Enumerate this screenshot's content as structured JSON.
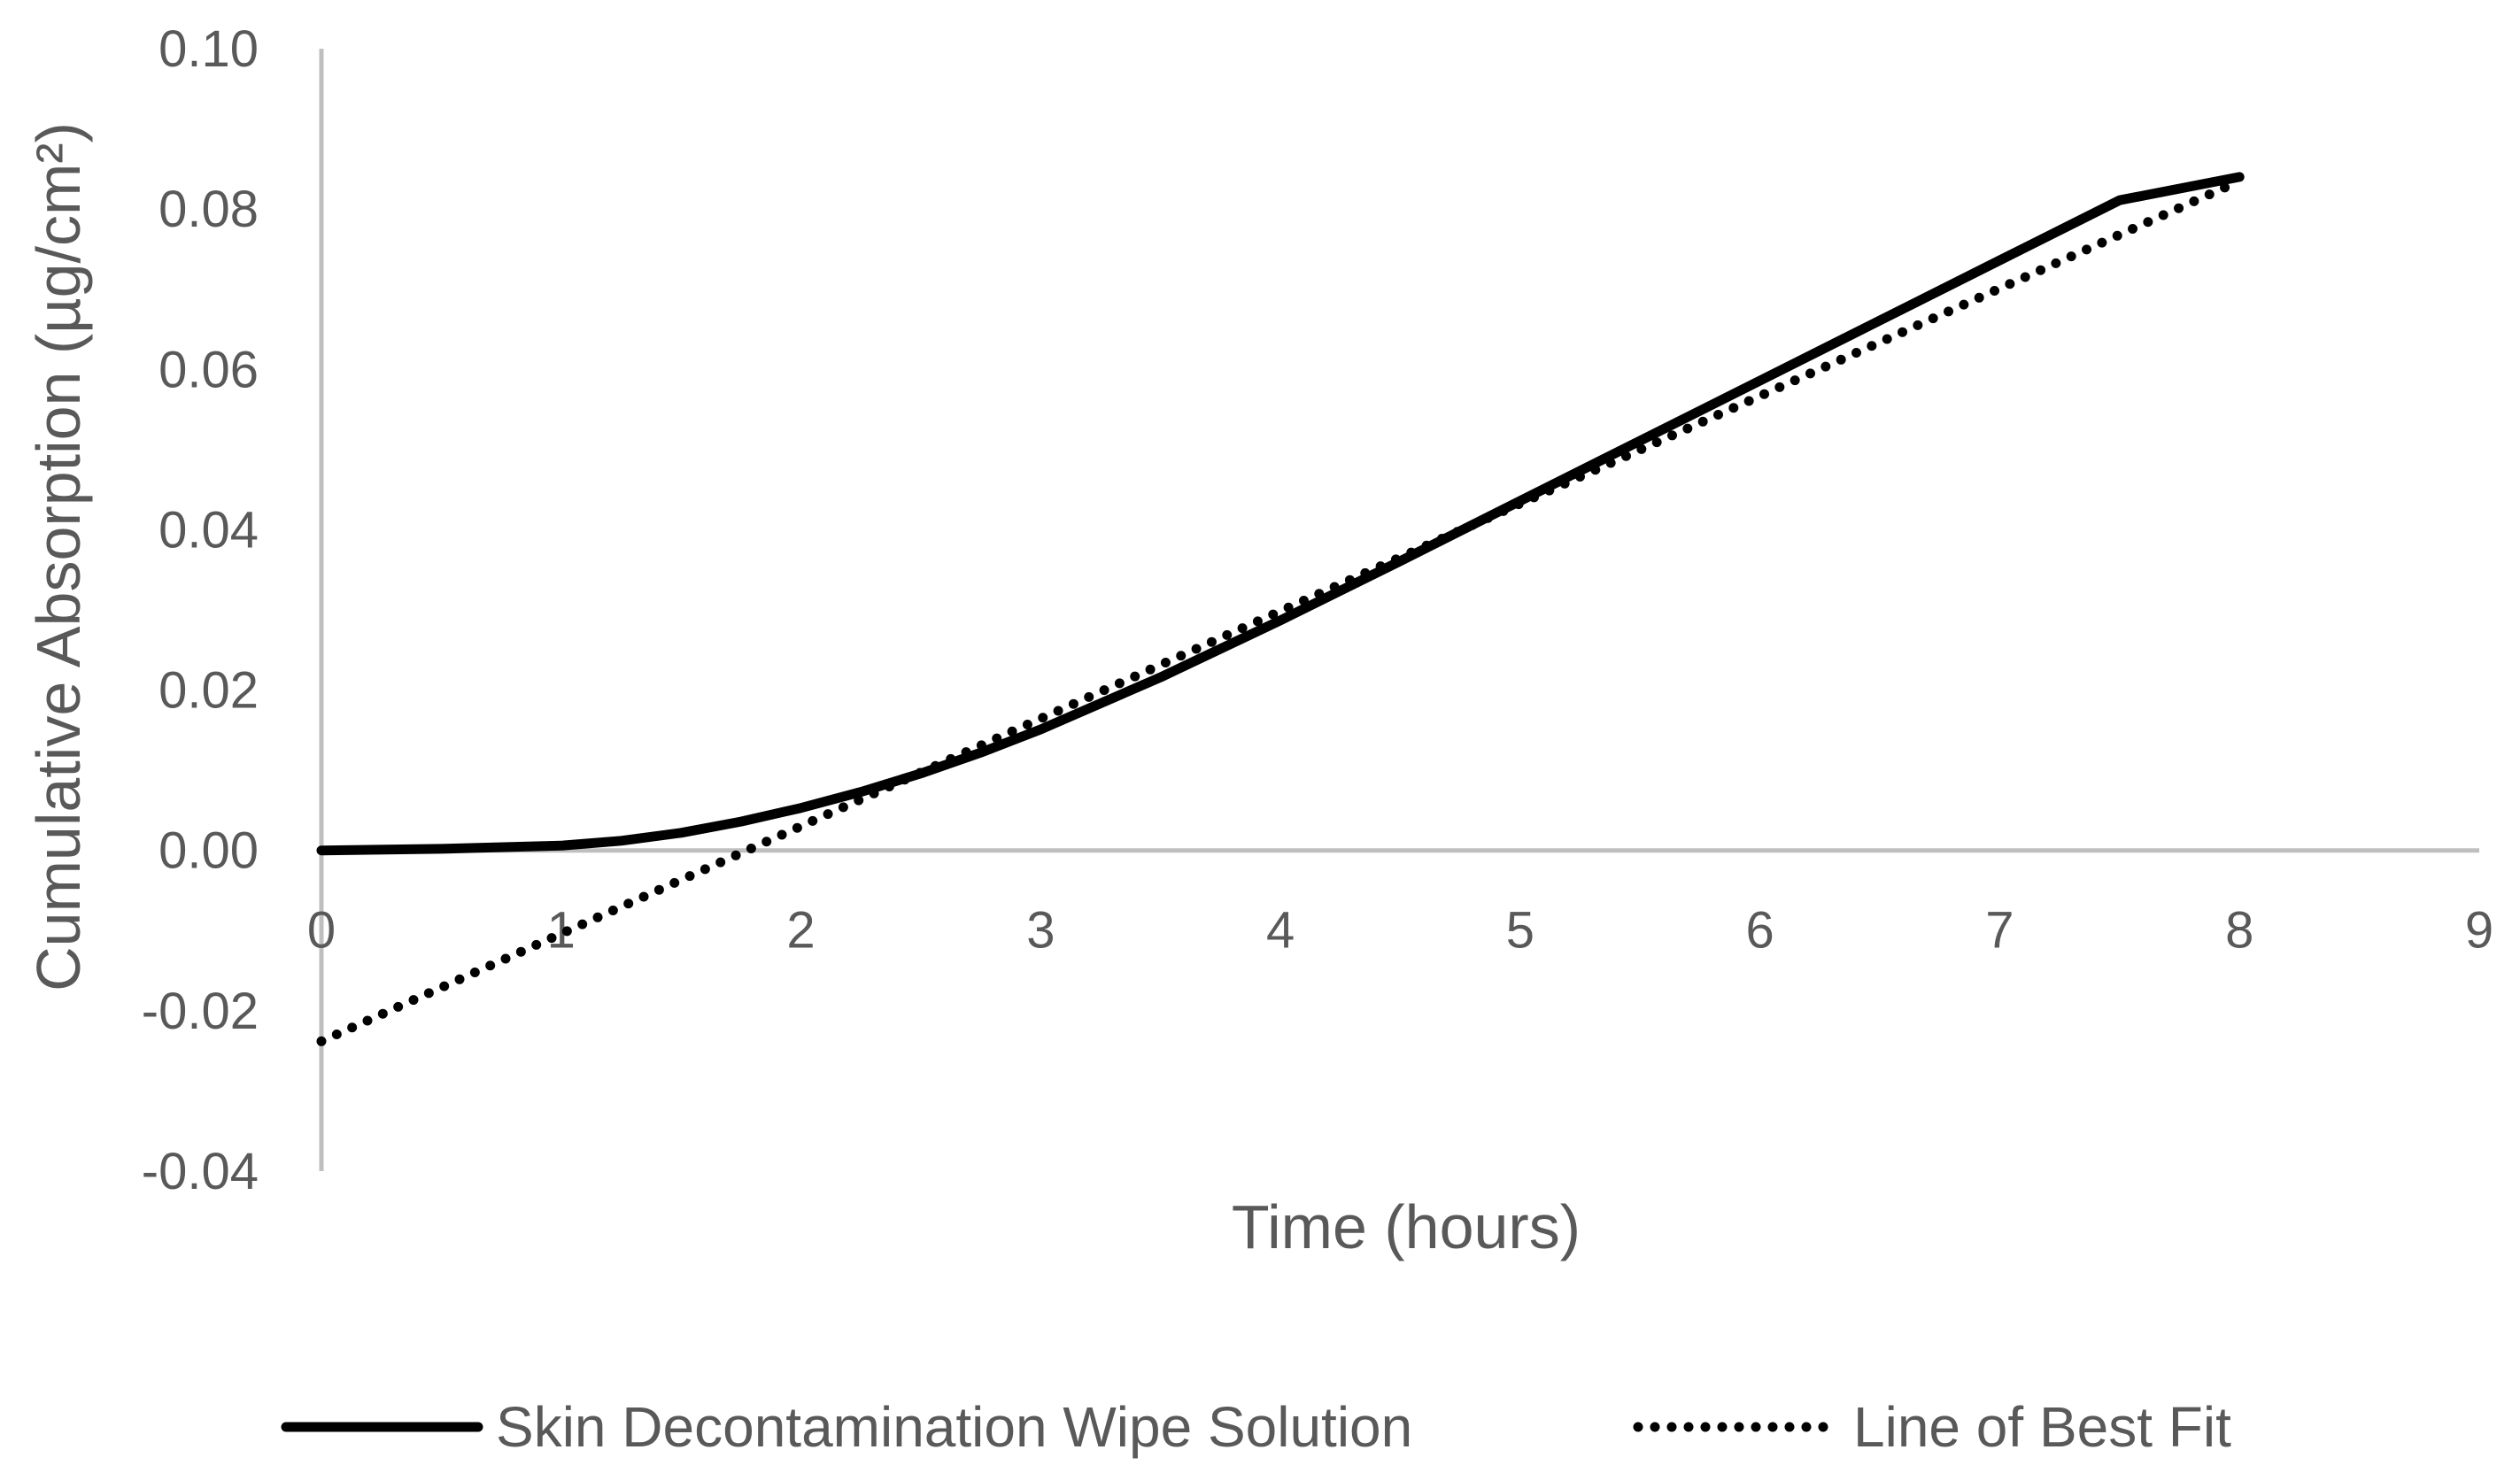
{
  "chart_data": {
    "type": "line",
    "title": "",
    "xlabel": "Time (hours)",
    "ylabel": "Cumulative Absorption (µg/cm²)",
    "xlim": [
      0,
      9
    ],
    "ylim": [
      -0.04,
      0.1
    ],
    "xticks": [
      "0",
      "1",
      "2",
      "3",
      "4",
      "5",
      "6",
      "7",
      "8",
      "9"
    ],
    "yticks": [
      "0.10",
      "0.08",
      "0.06",
      "0.04",
      "0.02",
      "0.00",
      "-0.02",
      "-0.04"
    ],
    "grid": false,
    "legend": "bottom",
    "series": [
      {
        "name": "Skin Decontamination Wipe Solution",
        "style": "solid",
        "color": "#000000",
        "x": [
          0,
          0.5,
          1,
          1.25,
          1.5,
          1.75,
          2,
          2.25,
          2.5,
          2.75,
          3,
          3.5,
          4,
          4.5,
          5,
          5.5,
          6,
          6.5,
          7,
          7.5,
          8
        ],
        "y": [
          0.0,
          0.0002,
          0.0006,
          0.0012,
          0.0022,
          0.0036,
          0.0053,
          0.0073,
          0.0096,
          0.0122,
          0.0151,
          0.0216,
          0.0287,
          0.0361,
          0.0436,
          0.0511,
          0.0586,
          0.0661,
          0.0736,
          0.0811,
          0.084
        ]
      },
      {
        "name": "Line of Best Fit",
        "style": "dotted",
        "color": "#000000",
        "x": [
          0,
          8
        ],
        "y": [
          -0.0238,
          0.0835
        ]
      }
    ]
  }
}
